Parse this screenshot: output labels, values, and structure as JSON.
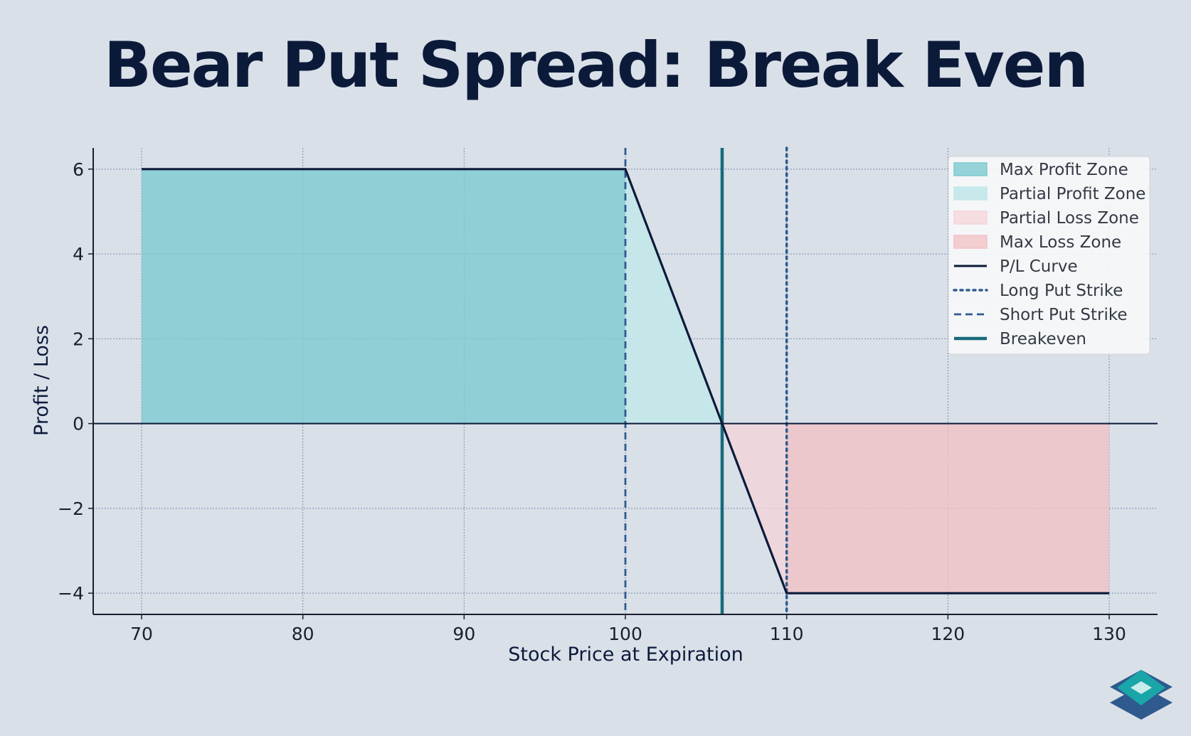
{
  "title": "Bear Put Spread: Break Even",
  "chart_data": {
    "type": "line",
    "xlabel": "Stock Price at Expiration",
    "ylabel": "Profit / Loss",
    "xlim": [
      67,
      133
    ],
    "ylim": [
      -4.5,
      6.5
    ],
    "xticks": [
      70,
      80,
      90,
      100,
      110,
      120,
      130
    ],
    "yticks": [
      -4,
      -2,
      0,
      2,
      4,
      6
    ],
    "ytick_labels": [
      "−4",
      "−2",
      "0",
      "2",
      "4",
      "6"
    ],
    "grid": true,
    "legend_position": "top-right",
    "pl_curve": {
      "name": "P/L Curve",
      "x": [
        70,
        100,
        106,
        110,
        130
      ],
      "y": [
        6,
        6,
        0,
        -4,
        -4
      ],
      "color": "#0c1a3a"
    },
    "zones": [
      {
        "name": "Max Profit Zone",
        "x": [
          70,
          100
        ],
        "color": "#7ecbd1",
        "opacity": 0.8
      },
      {
        "name": "Partial Profit Zone",
        "x": [
          100,
          106
        ],
        "color": "#c2e8ea",
        "opacity": 0.9
      },
      {
        "name": "Partial Loss Zone",
        "x": [
          106,
          110
        ],
        "color": "#f6d3d7",
        "opacity": 0.7
      },
      {
        "name": "Max Loss Zone",
        "x": [
          110,
          130
        ],
        "color": "#f2c0c4",
        "opacity": 0.75
      }
    ],
    "lines": [
      {
        "name": "Long Put Strike",
        "x": 110,
        "style": "dotted",
        "color": "#2e5a8e"
      },
      {
        "name": "Short Put Strike",
        "x": 100,
        "style": "dashed",
        "color": "#2e5a8e"
      },
      {
        "name": "Breakeven",
        "x": 106,
        "style": "solid",
        "color": "#166a7a"
      }
    ],
    "legend": [
      "Max Profit Zone",
      "Partial Profit Zone",
      "Partial Loss Zone",
      "Max Loss Zone",
      "P/L Curve",
      "Long Put Strike",
      "Short Put Strike",
      "Breakeven"
    ]
  },
  "logo": {
    "icon": "layered-diamond-logo-icon",
    "colors": [
      "#2e5a8e",
      "#1aa6a8",
      "#c9ecec"
    ]
  }
}
